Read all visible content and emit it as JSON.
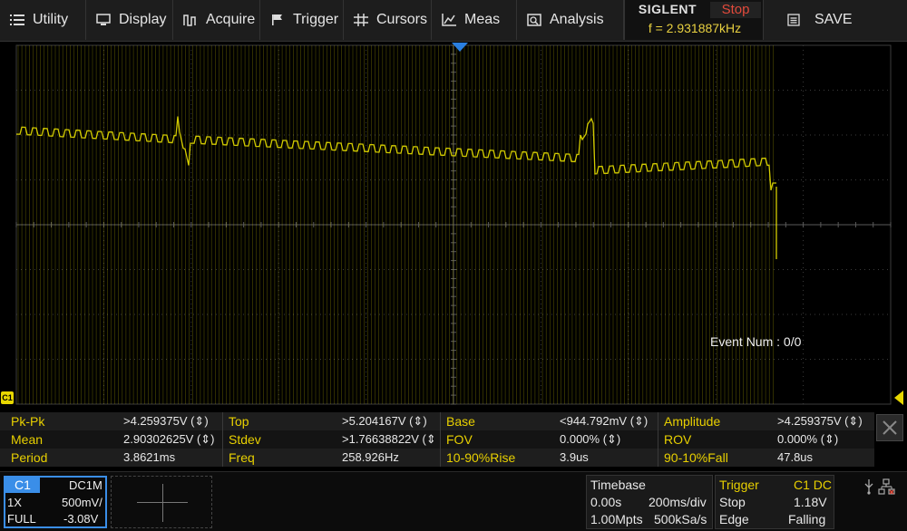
{
  "menu": [
    {
      "id": "utility",
      "label": "Utility",
      "icon": "list-icon"
    },
    {
      "id": "display",
      "label": "Display",
      "icon": "monitor-icon"
    },
    {
      "id": "acquire",
      "label": "Acquire",
      "icon": "waveform-icon"
    },
    {
      "id": "trigger",
      "label": "Trigger",
      "icon": "flag-icon"
    },
    {
      "id": "cursors",
      "label": "Cursors",
      "icon": "cursor-grid-icon"
    },
    {
      "id": "meas",
      "label": "Meas",
      "icon": "chart-meas-icon"
    },
    {
      "id": "analysis",
      "label": "Analysis",
      "icon": "analysis-icon"
    },
    {
      "id": "save",
      "label": "SAVE",
      "icon": "save-list-icon"
    }
  ],
  "brand": "SIGLENT",
  "run_status": "Stop",
  "frequency": "f = 2.931887kHz",
  "event_num": "Event Num : 0/0",
  "channel_marker": "C1",
  "colors": {
    "trace": "#e8e000",
    "grid": "#3c3c3c",
    "label": "#e8d000",
    "accent": "#3a8ee8",
    "stop": "#e24a3b"
  },
  "measurements": [
    [
      {
        "label": "Pk-Pk",
        "value": ">4.259375V (⇕)"
      },
      {
        "label": "Top",
        "value": ">5.204167V (⇕)"
      },
      {
        "label": "Base",
        "value": "<944.792mV (⇕)"
      },
      {
        "label": "Amplitude",
        "value": ">4.259375V (⇕)"
      }
    ],
    [
      {
        "label": "Mean",
        "value": "2.90302625V (⇕)"
      },
      {
        "label": "Stdev",
        "value": ">1.76638822V (⇕"
      },
      {
        "label": "FOV",
        "value": "0.000% (⇕)"
      },
      {
        "label": "ROV",
        "value": "0.000% (⇕)"
      }
    ],
    [
      {
        "label": "Period",
        "value": "3.8621ms"
      },
      {
        "label": "Freq",
        "value": "258.926Hz"
      },
      {
        "label": "10-90%Rise",
        "value": "3.9us"
      },
      {
        "label": "90-10%Fall",
        "value": "47.8us"
      }
    ]
  ],
  "channel1": {
    "tag": "C1",
    "coupling": "DC1M",
    "probe": "1X",
    "scale": "500mV/",
    "bandwidth": "FULL",
    "offset": "-3.08V"
  },
  "timebase": {
    "title": "Timebase",
    "delay": "0.00s",
    "scale": "200ms/div",
    "memory": "1.00Mpts",
    "sample_rate": "500kSa/s"
  },
  "trigger_status": {
    "title": "Trigger",
    "source": "C1 DC",
    "state": "Stop",
    "level": "1.18V",
    "type": "Edge",
    "slope": "Falling"
  }
}
